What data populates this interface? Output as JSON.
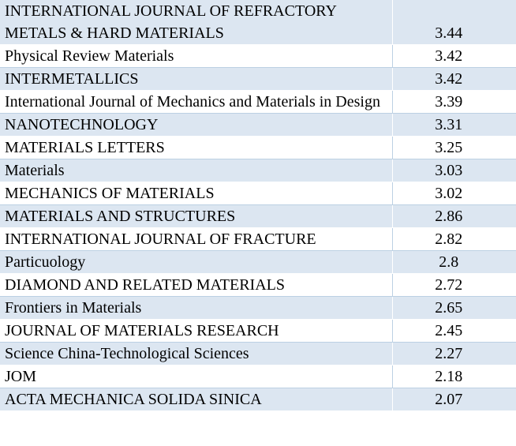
{
  "journals": [
    {
      "name": "INTERNATIONAL JOURNAL OF REFRACTORY METALS & HARD MATERIALS",
      "value": "3.44"
    },
    {
      "name": "Physical Review Materials",
      "value": "3.42"
    },
    {
      "name": "INTERMETALLICS",
      "value": "3.42"
    },
    {
      "name": "International Journal of Mechanics and Materials in Design",
      "value": "3.39"
    },
    {
      "name": "NANOTECHNOLOGY",
      "value": "3.31"
    },
    {
      "name": "MATERIALS LETTERS",
      "value": "3.25"
    },
    {
      "name": "Materials",
      "value": "3.03"
    },
    {
      "name": "MECHANICS OF MATERIALS",
      "value": "3.02"
    },
    {
      "name": "MATERIALS AND STRUCTURES",
      "value": "2.86"
    },
    {
      "name": "INTERNATIONAL JOURNAL OF FRACTURE",
      "value": "2.82"
    },
    {
      "name": "Particuology",
      "value": "2.8"
    },
    {
      "name": "DIAMOND AND RELATED MATERIALS",
      "value": "2.72"
    },
    {
      "name": "Frontiers in Materials",
      "value": "2.65"
    },
    {
      "name": "JOURNAL OF MATERIALS RESEARCH",
      "value": "2.45"
    },
    {
      "name": "Science China-Technological Sciences",
      "value": "2.27"
    },
    {
      "name": "JOM",
      "value": "2.18"
    },
    {
      "name": "ACTA MECHANICA SOLIDA SINICA",
      "value": "2.07"
    }
  ],
  "colors": {
    "row_shade": "#dce6f1",
    "row_plain": "#ffffff",
    "border": "#bcd0e3"
  }
}
